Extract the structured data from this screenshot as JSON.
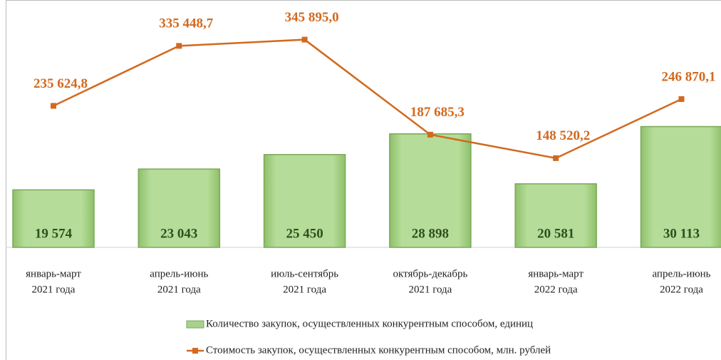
{
  "chart_data": {
    "type": "bar",
    "categories": [
      [
        "январь-март",
        "2021 года"
      ],
      [
        "апрель-июнь",
        "2021 года"
      ],
      [
        "июль-сентябрь",
        "2021 года"
      ],
      [
        "октябрь-декабрь",
        "2021 года"
      ],
      [
        "январь-март",
        "2022 года"
      ],
      [
        "апрель-июнь",
        "2022 года"
      ]
    ],
    "series": [
      {
        "name": "Количество закупок, осуществленных конкурентным способом, единиц",
        "type": "bar",
        "color": "#a9d18e",
        "values": [
          19574,
          23043,
          25450,
          28898,
          20581,
          30113
        ],
        "value_labels": [
          "19 574",
          "23 043",
          "25 450",
          "28 898",
          "20 581",
          "30 113"
        ]
      },
      {
        "name": "Стоимость закупок, осуществленных конкурентным способом, млн. рублей",
        "type": "line",
        "axis": "y2",
        "color": "#d2691e",
        "values": [
          235624.8,
          335448.7,
          345895.0,
          187685.3,
          148520.2,
          246870.1
        ],
        "value_labels": [
          "235 624,8",
          "335 448,7",
          "345 895,0",
          "187 685,3",
          "148 520,2",
          "246 870,1"
        ]
      }
    ],
    "ylim": [
      10000,
      50000
    ],
    "y2lim": [
      0,
      400000
    ]
  }
}
